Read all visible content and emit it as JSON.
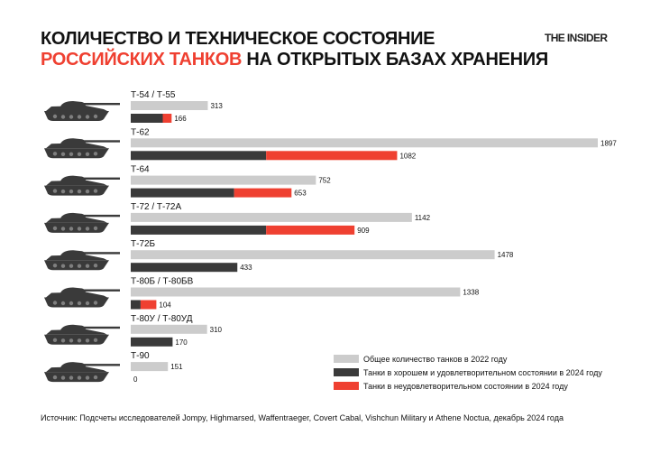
{
  "header": {
    "title_line1": "КОЛИЧЕСТВО И ТЕХНИЧЕСКОЕ СОСТОЯНИЕ",
    "title_line2_accent": "РОССИЙСКИХ ТАНКОВ",
    "title_line2_rest": " НА ОТКРЫТЫХ БАЗАХ ХРАНЕНИЯ",
    "brand": "THE INSIDER"
  },
  "source": "Источник: Подсчеты исследователей Jompy, Highmarsed, Waffentraeger, Covert Cabal, Vishchun Military и Athene Noctua, декабрь 2024 года",
  "colors": {
    "total": "#cccccc",
    "good": "#3a3a3a",
    "bad": "#ef4031",
    "accent": "#ef4031"
  },
  "chart_data": {
    "type": "bar",
    "orientation": "horizontal",
    "layout": "grouped; good and bad bars stacked on the second row",
    "categories": [
      "Т-54 / Т-55",
      "Т-62",
      "Т-64",
      "Т-72 / Т-72А",
      "Т-72Б",
      "Т-80Б / Т-80БВ",
      "Т-80У / Т-80УД",
      "Т-90"
    ],
    "series": [
      {
        "name": "Общее количество танков в 2022 году",
        "values": [
          313,
          1897,
          752,
          1142,
          1478,
          1338,
          310,
          151
        ]
      },
      {
        "name": "Танки в хорошем и удовлетворительном состоянии в 2024 году",
        "values": [
          130,
          550,
          420,
          550,
          433,
          40,
          170,
          0
        ]
      },
      {
        "name": "Танки в неудовлетворительном состоянии в 2024 году",
        "values": [
          36,
          532,
          233,
          359,
          0,
          64,
          0,
          0
        ]
      }
    ],
    "data_labels": {
      "total": [
        "313",
        "1897",
        "752",
        "1142",
        "1478",
        "1338",
        "310",
        "151"
      ],
      "row2": [
        "166",
        "1082",
        "653",
        "909",
        "433",
        "104",
        "170",
        "0"
      ]
    },
    "legend": [
      "Общее количество танков в 2022 году",
      "Танки в хорошем и удовлетворительном состоянии в 2024 году",
      "Танки в неудовлетворительном состоянии в 2024 году"
    ],
    "legend_position": "bottom-right",
    "icons": [
      "tank-icon",
      "tank-icon",
      "tank-icon",
      "tank-icon",
      "tank-icon",
      "tank-icon",
      "tank-icon",
      "tank-icon"
    ],
    "xlim": [
      0,
      1897
    ],
    "grid": false
  }
}
